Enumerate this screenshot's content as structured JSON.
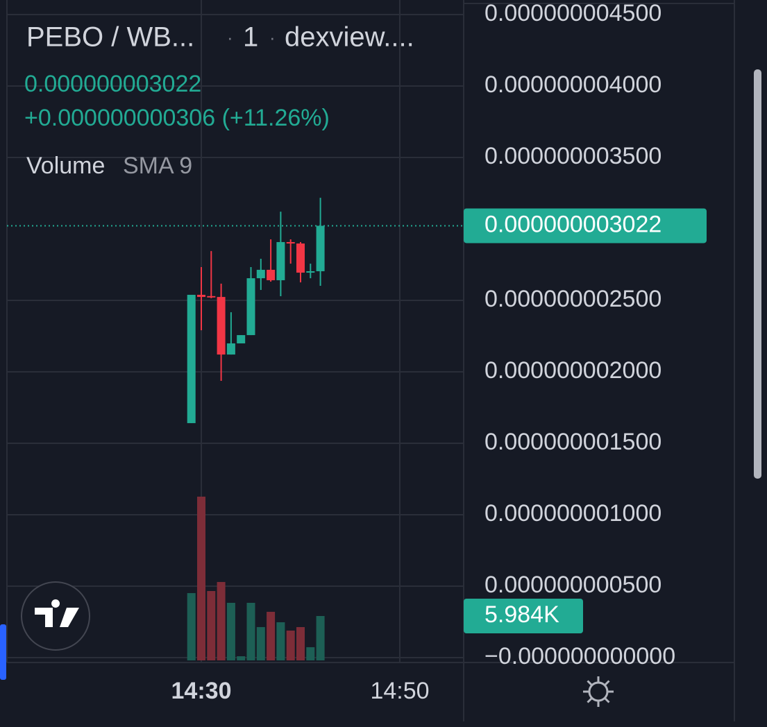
{
  "chart_data": {
    "type": "candlestick",
    "header": {
      "symbol": "PEBO / WB...",
      "interval": "1",
      "source": "dexview....",
      "price": "0.000000003022",
      "change": "+0.000000000306 (+11.26%)",
      "indicator": "Volume",
      "indicator_params": "SMA 9"
    },
    "x": [
      "14:29",
      "14:30",
      "14:31",
      "14:32",
      "14:33",
      "14:34",
      "14:35",
      "14:36",
      "14:37",
      "14:38",
      "14:39",
      "14:40",
      "14:41",
      "14:42"
    ],
    "open": [
      1.641e-09,
      2.539e-09,
      2.53e-09,
      2.524e-09,
      2.121e-09,
      2.199e-09,
      2.257e-09,
      2.655e-09,
      2.714e-09,
      2.641e-09,
      2.908e-09,
      2.898e-09,
      2.694e-09,
      2.704e-09
    ],
    "high": [
      2.539e-09,
      2.733e-09,
      2.845e-09,
      2.617e-09,
      2.417e-09,
      2.257e-09,
      2.733e-09,
      2.791e-09,
      2.927e-09,
      3.121e-09,
      2.927e-09,
      2.908e-09,
      2.757e-09,
      3.218e-09
    ],
    "low": [
      1.641e-09,
      2.291e-09,
      2.515e-09,
      1.937e-09,
      2.121e-09,
      2.199e-09,
      2.257e-09,
      2.573e-09,
      2.631e-09,
      2.529e-09,
      2.757e-09,
      2.626e-09,
      2.655e-09,
      2.602e-09
    ],
    "close": [
      2.539e-09,
      2.524e-09,
      2.524e-09,
      2.121e-09,
      2.199e-09,
      2.257e-09,
      2.655e-09,
      2.714e-09,
      2.641e-09,
      2.908e-09,
      2.898e-09,
      2.694e-09,
      2.704e-09,
      3.022e-09
    ],
    "close_labels": [
      null,
      null,
      null,
      null,
      null,
      null,
      null,
      null,
      null,
      null,
      null,
      null,
      null,
      "0.000000003022"
    ],
    "volume": [
      9070,
      22070,
      9350,
      10570,
      7760,
      560,
      7760,
      4490,
      6550,
      5140,
      4020,
      4490,
      1780,
      5984
    ],
    "volume_labels": [
      null,
      null,
      null,
      null,
      null,
      null,
      null,
      null,
      null,
      null,
      null,
      null,
      null,
      "5.984K"
    ],
    "volume_ylim": [
      0,
      89000
    ],
    "up_color": "#22ab94",
    "down_color": "#f23645",
    "up_volume_color": "#1d5f55",
    "down_volume_color": "#7d2d38",
    "ylim": [
      -3.4e-11,
      4.602e-09
    ],
    "yticks": [
      {
        "value": 4.5e-09,
        "label": "0.000000004500"
      },
      {
        "value": 4e-09,
        "label": "0.000000004000"
      },
      {
        "value": 3.5e-09,
        "label": "0.000000003500"
      },
      {
        "value": 2.5e-09,
        "label": "0.000000002500"
      },
      {
        "value": 2e-09,
        "label": "0.000000002000"
      },
      {
        "value": 1.5e-09,
        "label": "0.000000001500"
      },
      {
        "value": 1e-09,
        "label": "0.000000001000"
      },
      {
        "value": 5e-10,
        "label": "0.000000000500"
      },
      {
        "value": 0,
        "label": "−0.000000000000"
      }
    ],
    "xlim": [
      "14:10",
      "14:56"
    ],
    "xticks": [
      "14:30",
      "14:50"
    ],
    "grid": true
  }
}
